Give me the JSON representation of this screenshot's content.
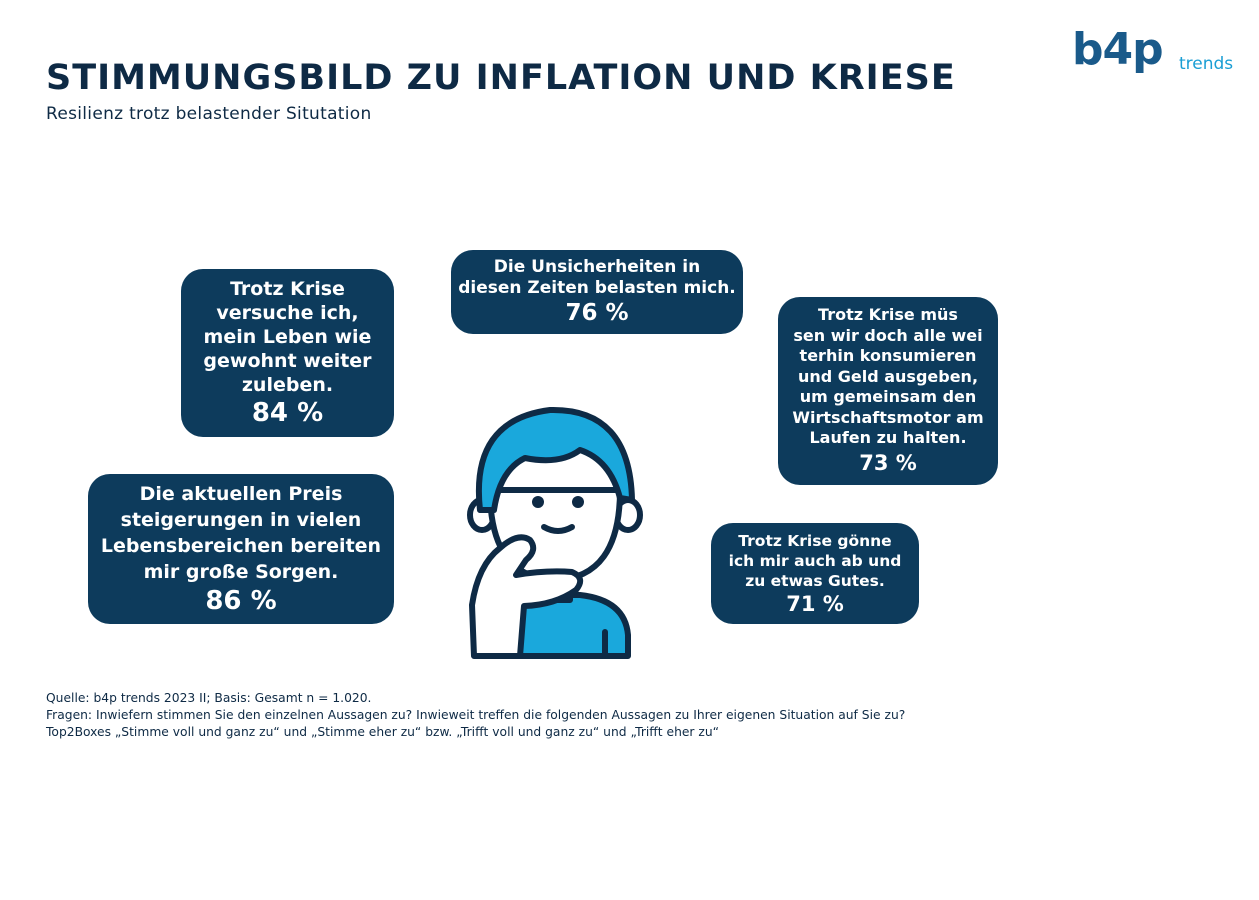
{
  "header": {
    "title": "STIMMUNGSBILD ZU INFLATION UND KRIESE",
    "subtitle": "Resilienz trotz belastender Situtation"
  },
  "logo": {
    "main": "b4p",
    "sub": "trends"
  },
  "colors": {
    "bubble": "#0d3b5c",
    "title": "#0e2a45",
    "accent": "#1a9ed4"
  },
  "statements": [
    {
      "text": "Trotz Krise\nversuche ich,\nmein Leben wie\ngewohnt weiter\nzuleben.",
      "percent": "84 %"
    },
    {
      "text": "Die Unsicherheiten in\ndiesen Zeiten belasten mich.",
      "percent": "76 %"
    },
    {
      "text": "Trotz Krise müs\nsen wir doch alle wei\nterhin konsumieren\nund Geld ausgeben,\num gemeinsam den\nWirtschaftsmotor am\nLaufen zu halten.",
      "percent": "73 %"
    },
    {
      "text": "Die aktuellen Preis\nsteigerungen in vielen\nLebensbereichen bereiten\nmir große Sorgen.",
      "percent": "86 %"
    },
    {
      "text": "Trotz Krise gönne\nich mir auch ab und\nzu etwas Gutes.",
      "percent": "71 %"
    }
  ],
  "illustration": {
    "icon": "thinking-person-icon"
  },
  "footer": {
    "source": "Quelle: b4p trends 2023 II; Basis: Gesamt n = 1.020.",
    "questions": "Fragen: Inwiefern stimmen Sie den einzelnen Aussagen zu? Inwieweit treffen die folgenden Aussagen zu Ihrer eigenen Situation auf Sie zu?",
    "note": "Top2Boxes „Stimme voll und ganz zu“ und „Stimme eher zu“ bzw. „Trifft voll und ganz zu“ und „Trifft eher zu“"
  }
}
